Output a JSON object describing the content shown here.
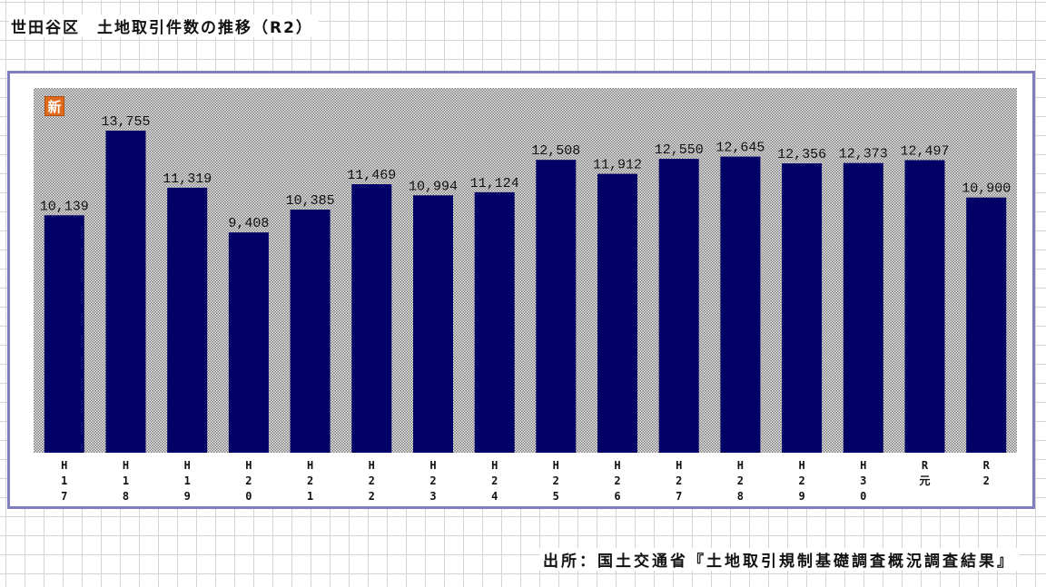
{
  "title": "世田谷区　土地取引件数の推移（R2）",
  "badge": "新",
  "source": "出所：国土交通省『土地取引規制基礎調査概況調査結果』",
  "colors": {
    "bar": "#000066",
    "frame": "#7f7fbf",
    "badge": "#e06a1c"
  },
  "chart_data": {
    "type": "bar",
    "categories": [
      "H17",
      "H18",
      "H19",
      "H20",
      "H21",
      "H22",
      "H23",
      "H24",
      "H25",
      "H26",
      "H27",
      "H28",
      "H29",
      "H30",
      "R元",
      "R2"
    ],
    "values": [
      10139,
      13755,
      11319,
      9408,
      10385,
      11469,
      10994,
      11124,
      12508,
      11912,
      12550,
      12645,
      12356,
      12373,
      12497,
      10900
    ],
    "value_labels": [
      "10,139",
      "13,755",
      "11,319",
      "9,408",
      "10,385",
      "11,469",
      "10,994",
      "11,124",
      "12,508",
      "11,912",
      "12,550",
      "12,645",
      "12,356",
      "12,373",
      "12,497",
      "10,900"
    ],
    "title": "",
    "xlabel": "",
    "ylabel": "",
    "ylim": [
      0,
      15000
    ],
    "grid": false,
    "legend": "none"
  }
}
